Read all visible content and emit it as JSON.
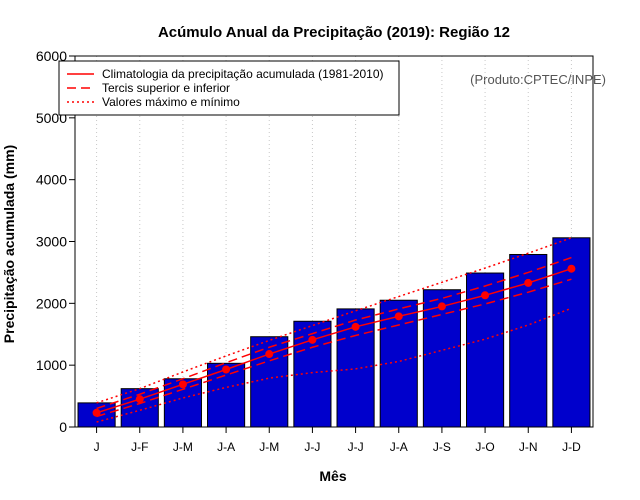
{
  "colors": {
    "bar_fill": "#0000cc",
    "bar_stroke": "#000000",
    "climatology": "#ff0000",
    "grid": "#c8c8c8"
  },
  "chart_data": {
    "type": "bar",
    "title": "Acúmulo Anual da Precipitação (2019): Região 12",
    "xlabel": "Mês",
    "ylabel": "Precipitação acumulada (mm)",
    "credit": "(Produto:CPTEC/INPE)",
    "ylim": [
      0,
      6000
    ],
    "yticks": [
      0,
      1000,
      2000,
      3000,
      4000,
      5000,
      6000
    ],
    "grid": "vertical dotted at each category",
    "legend_position": "top-left",
    "categories": [
      "J",
      "J-F",
      "J-M",
      "J-A",
      "J-M",
      "J-J",
      "J-J",
      "J-A",
      "J-S",
      "J-O",
      "J-N",
      "J-D"
    ],
    "series": [
      {
        "name": "Precipitação acumulada 2019",
        "kind": "bar",
        "values": [
          390,
          620,
          780,
          1030,
          1460,
          1710,
          1910,
          2050,
          2220,
          2490,
          2790,
          3060
        ]
      },
      {
        "name": "Climatologia da precipitação acumulada (1981-2010)",
        "kind": "line-solid-points",
        "values": [
          230,
          450,
          690,
          930,
          1180,
          1410,
          1620,
          1790,
          1950,
          2130,
          2330,
          2560
        ]
      },
      {
        "name": "Tercil superior",
        "kind": "line-dashed",
        "values": [
          300,
          530,
          780,
          1040,
          1290,
          1510,
          1730,
          1910,
          2080,
          2280,
          2500,
          2740
        ]
      },
      {
        "name": "Tercil inferior",
        "kind": "line-dashed",
        "values": [
          170,
          380,
          610,
          840,
          1070,
          1290,
          1480,
          1650,
          1820,
          1990,
          2180,
          2390
        ]
      },
      {
        "name": "Valor máximo",
        "kind": "line-dotted",
        "values": [
          390,
          620,
          890,
          1150,
          1400,
          1640,
          1880,
          2110,
          2340,
          2570,
          2810,
          3060
        ]
      },
      {
        "name": "Valor mínimo",
        "kind": "line-dotted",
        "values": [
          80,
          270,
          470,
          640,
          790,
          880,
          940,
          1060,
          1240,
          1420,
          1650,
          1920
        ]
      }
    ],
    "legend": [
      {
        "label": "Climatologia da precipitação acumulada (1981-2010)",
        "style": "solid"
      },
      {
        "label": "Tercis superior e inferior",
        "style": "dashed"
      },
      {
        "label": "Valores máximo e mínimo",
        "style": "dotted"
      }
    ]
  }
}
